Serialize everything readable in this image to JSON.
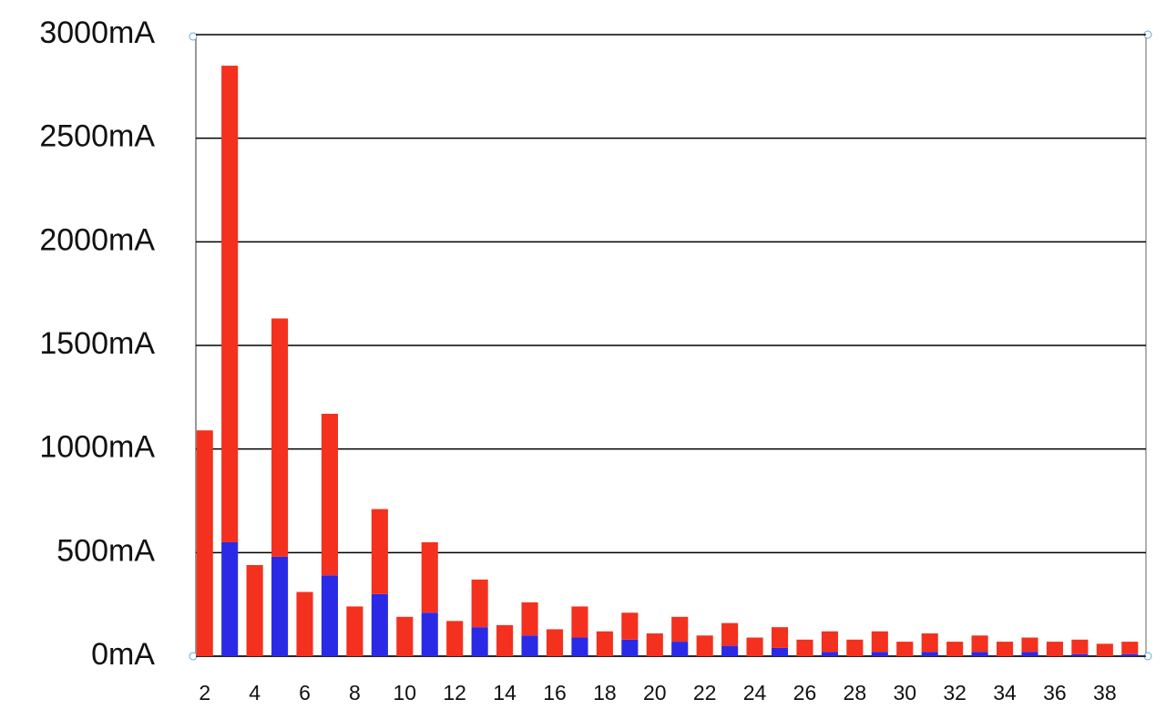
{
  "chart_data": {
    "type": "stacked_bar",
    "categories": [
      2,
      null,
      4,
      null,
      6,
      null,
      8,
      null,
      10,
      null,
      12,
      null,
      14,
      null,
      16,
      null,
      18,
      null,
      20,
      null,
      22,
      null,
      24,
      null,
      26,
      null,
      28,
      null,
      30,
      null,
      32,
      null,
      34,
      null,
      36,
      null,
      38,
      null
    ],
    "series": [
      {
        "color": "#2a2ae6",
        "values": [
          0,
          550,
          0,
          480,
          0,
          390,
          0,
          300,
          0,
          210,
          0,
          140,
          0,
          100,
          0,
          90,
          0,
          80,
          0,
          70,
          0,
          50,
          0,
          40,
          0,
          20,
          0,
          20,
          0,
          20,
          0,
          20,
          0,
          20,
          0,
          10,
          0,
          10
        ]
      },
      {
        "color": "#f4301e",
        "values": [
          1090,
          2300,
          440,
          1150,
          310,
          780,
          240,
          410,
          190,
          340,
          170,
          230,
          150,
          160,
          130,
          150,
          120,
          130,
          110,
          120,
          100,
          110,
          90,
          100,
          80,
          100,
          80,
          100,
          70,
          90,
          70,
          80,
          70,
          70,
          70,
          70,
          60,
          60
        ]
      }
    ],
    "ylim": [
      0,
      3000
    ],
    "yticks": [
      {
        "value": 0,
        "label": "0mA"
      },
      {
        "value": 500,
        "label": "500mA"
      },
      {
        "value": 1000,
        "label": "1000mA"
      },
      {
        "value": 1500,
        "label": "1500mA"
      },
      {
        "value": 2000,
        "label": "2000mA"
      },
      {
        "value": 2500,
        "label": "2500mA"
      },
      {
        "value": 3000,
        "label": "3000mA"
      }
    ],
    "grid": true
  }
}
